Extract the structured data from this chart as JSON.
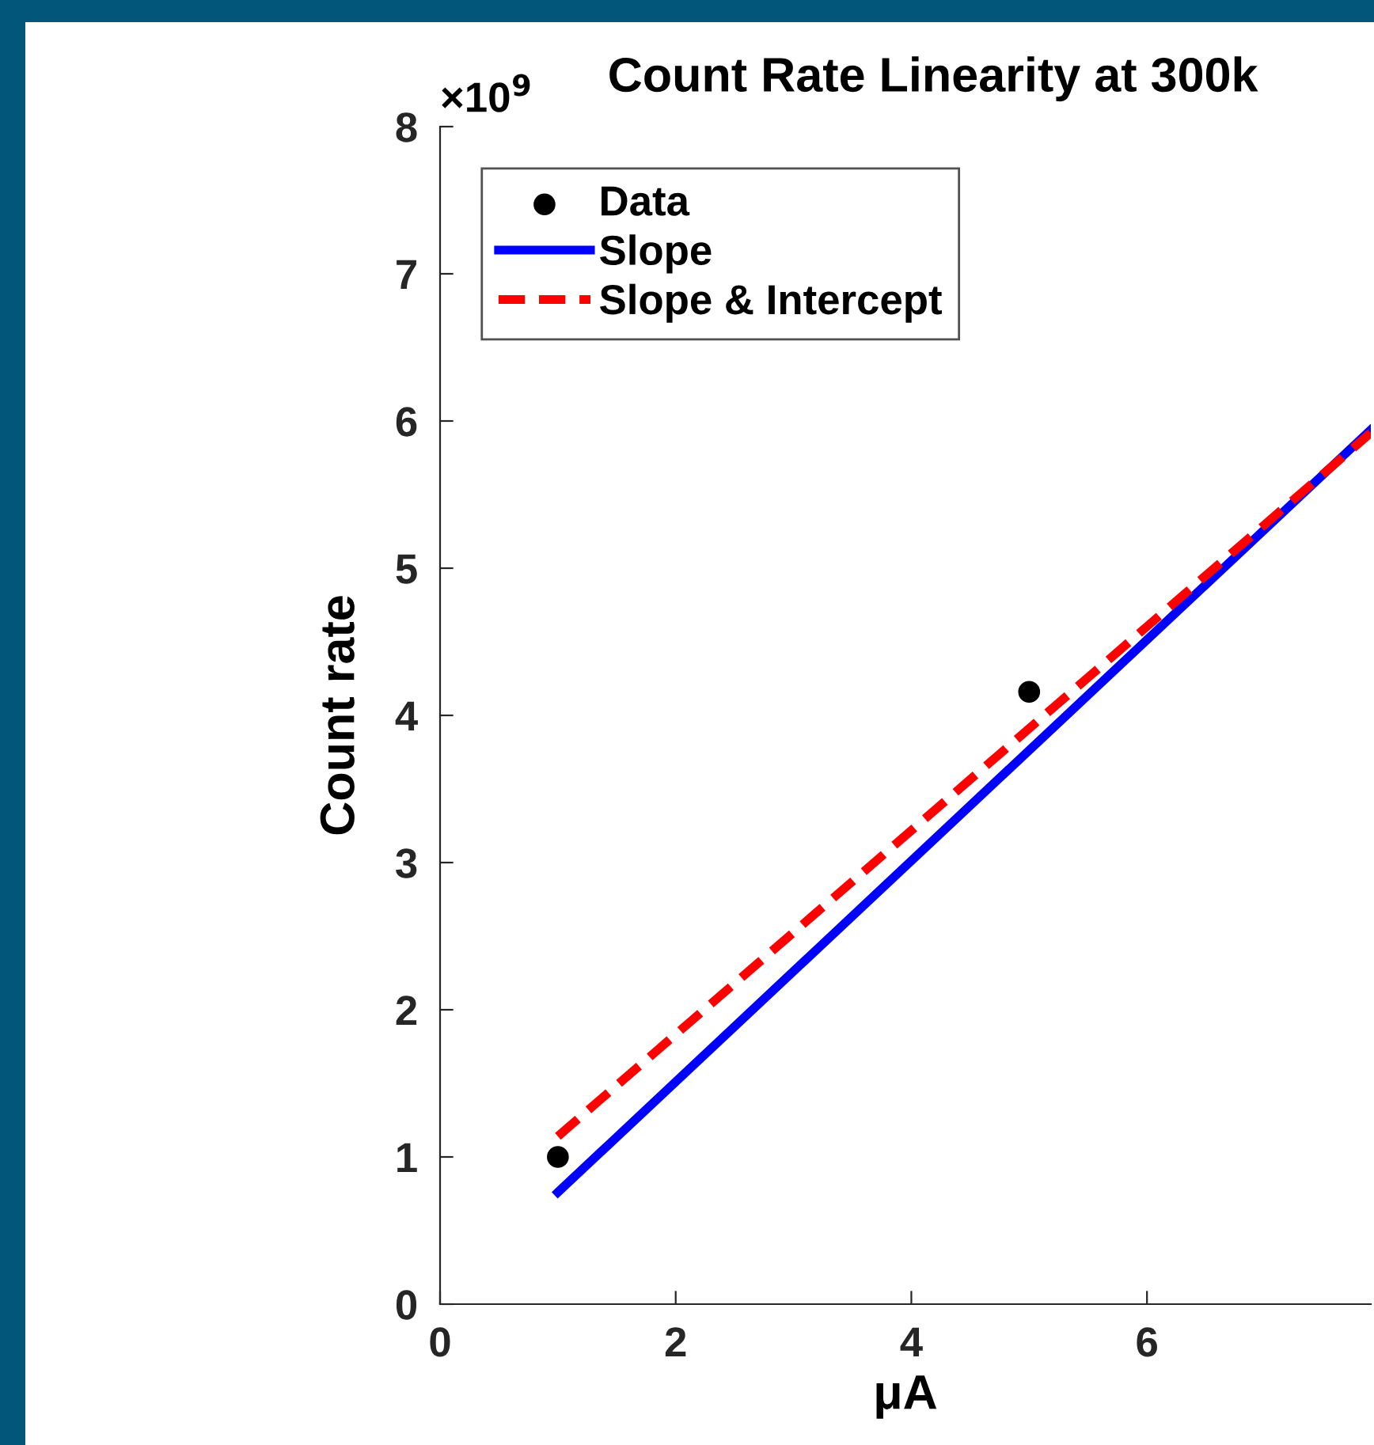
{
  "chart_data": {
    "type": "line",
    "title": "Count Rate Linearity at 300k",
    "xlabel": "μA",
    "ylabel": "Count rate",
    "annotations": [
      "×10$^{9}$"
    ],
    "xlim": [
      0,
      7.9
    ],
    "xticks": [
      0,
      2,
      4,
      6
    ],
    "ylim": [
      0,
      8
    ],
    "yticks": [
      0,
      1,
      2,
      3,
      4,
      5,
      6,
      7,
      8
    ],
    "grid": false,
    "legend": "top left",
    "series": [
      {
        "name": "Data",
        "type": "scatter",
        "marker": "circle",
        "color": "#000000",
        "x": [
          1,
          5
        ],
        "values": [
          1.0,
          4.16
        ]
      },
      {
        "name": "Slope",
        "line_style": "solid",
        "color": "#0000ff",
        "x": [
          1,
          7.9
        ],
        "values": [
          0.76,
          5.94
        ]
      },
      {
        "name": "Slope & Intercept",
        "line_style": "dashed",
        "color": "#ff0000",
        "x": [
          1,
          7.9
        ],
        "values": [
          1.14,
          5.92
        ]
      }
    ]
  }
}
